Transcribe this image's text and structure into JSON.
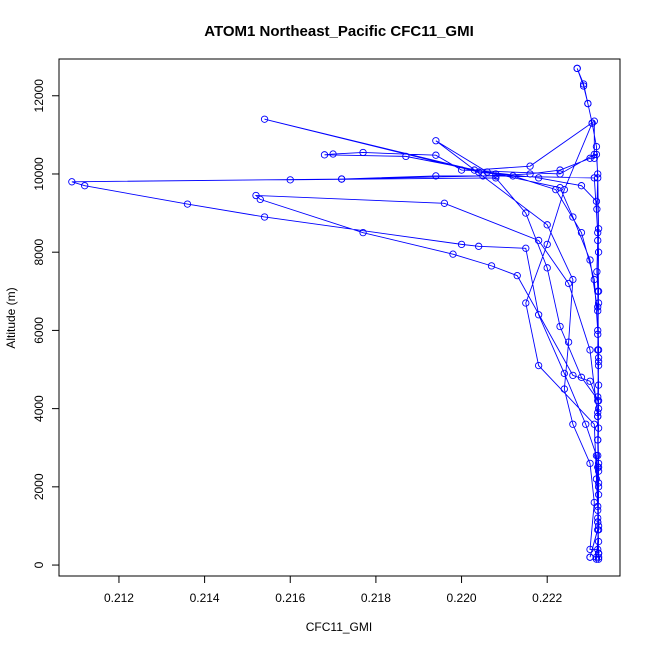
{
  "chart_data": {
    "type": "line",
    "title": "ATOM1 Northeast_Pacific CFC11_GMI",
    "xlabel": "CFC11_GMI",
    "ylabel": "Altitude (m)",
    "xlim": [
      0.2106,
      0.2237
    ],
    "ylim": [
      -280,
      12940
    ],
    "x_ticks": [
      0.212,
      0.214,
      0.216,
      0.218,
      0.22,
      0.222
    ],
    "x_tick_labels": [
      "0.212",
      "0.214",
      "0.216",
      "0.218",
      "0.220",
      "0.222"
    ],
    "y_ticks": [
      0,
      2000,
      4000,
      6000,
      8000,
      10000,
      12000
    ],
    "y_tick_labels": [
      "0",
      "2000",
      "4000",
      "6000",
      "8000",
      "10000",
      "12000"
    ],
    "grid": false,
    "series": [
      {
        "color": "#0000ff",
        "marker": "open-circle",
        "points": [
          [
            0.22315,
            150
          ],
          [
            0.2232,
            600
          ],
          [
            0.22318,
            1200
          ],
          [
            0.2232,
            2000
          ],
          [
            0.22318,
            2800
          ],
          [
            0.2232,
            3500
          ],
          [
            0.22318,
            4300
          ],
          [
            0.2232,
            5100
          ],
          [
            0.22318,
            5900
          ],
          [
            0.2232,
            6700
          ],
          [
            0.22316,
            7500
          ],
          [
            0.22318,
            8300
          ],
          [
            0.22316,
            9100
          ],
          [
            0.22318,
            9900
          ],
          [
            0.22315,
            10700
          ],
          [
            0.22305,
            11300
          ],
          [
            0.22295,
            11800
          ],
          [
            0.22285,
            12250
          ],
          [
            0.2227,
            12700
          ],
          [
            0.2227,
            12700
          ],
          [
            0.22285,
            12300
          ],
          [
            0.22295,
            11800
          ],
          [
            0.22305,
            11300
          ],
          [
            0.2224,
            9600
          ],
          [
            0.222,
            8200
          ],
          [
            0.2215,
            6700
          ],
          [
            0.2218,
            5100
          ],
          [
            0.2231,
            3600
          ],
          [
            0.22315,
            2200
          ],
          [
            0.2232,
            900
          ],
          [
            0.22315,
            200
          ],
          [
            0.2232,
            200
          ],
          [
            0.22318,
            1100
          ],
          [
            0.2232,
            2100
          ],
          [
            0.22318,
            3200
          ],
          [
            0.2232,
            4200
          ],
          [
            0.2228,
            4800
          ],
          [
            0.2223,
            6100
          ],
          [
            0.222,
            7600
          ],
          [
            0.2215,
            9000
          ],
          [
            0.2208,
            9900
          ],
          [
            0.216,
            9850
          ],
          [
            0.2172,
            9870
          ],
          [
            0.2194,
            9950
          ],
          [
            0.2208,
            9950
          ],
          [
            0.2231,
            9900
          ],
          [
            0.22318,
            8500
          ],
          [
            0.2232,
            7000
          ],
          [
            0.22318,
            5500
          ],
          [
            0.2232,
            4000
          ],
          [
            0.22318,
            2500
          ],
          [
            0.2232,
            1000
          ],
          [
            0.223,
            200
          ],
          [
            0.223,
            200
          ],
          [
            0.22318,
            900
          ],
          [
            0.2232,
            2400
          ],
          [
            0.22318,
            3800
          ],
          [
            0.223,
            5500
          ],
          [
            0.2225,
            7200
          ],
          [
            0.2218,
            8300
          ],
          [
            0.2196,
            9250
          ],
          [
            0.2152,
            9450
          ],
          [
            0.2153,
            9350
          ],
          [
            0.2177,
            8500
          ],
          [
            0.2198,
            7950
          ],
          [
            0.2207,
            7650
          ],
          [
            0.2213,
            7400
          ],
          [
            0.2226,
            4850
          ],
          [
            0.223,
            4700
          ],
          [
            0.22318,
            4200
          ],
          [
            0.2232,
            5500
          ],
          [
            0.22318,
            7000
          ],
          [
            0.2232,
            8600
          ],
          [
            0.22318,
            10000
          ],
          [
            0.22315,
            10500
          ],
          [
            0.2231,
            10500
          ],
          [
            0.2223,
            10000
          ],
          [
            0.22,
            10100
          ],
          [
            0.2194,
            10480
          ],
          [
            0.2177,
            10550
          ],
          [
            0.217,
            10510
          ],
          [
            0.2168,
            10490
          ],
          [
            0.2187,
            10450
          ],
          [
            0.2208,
            10000
          ],
          [
            0.2223,
            9650
          ],
          [
            0.2226,
            8900
          ],
          [
            0.223,
            7800
          ],
          [
            0.22318,
            6500
          ],
          [
            0.2232,
            5200
          ],
          [
            0.22318,
            3800
          ],
          [
            0.2232,
            2600
          ],
          [
            0.22318,
            1400
          ],
          [
            0.2232,
            300
          ],
          [
            0.2232,
            300
          ],
          [
            0.22318,
            1500
          ],
          [
            0.22315,
            2800
          ],
          [
            0.2229,
            3600
          ],
          [
            0.2224,
            4900
          ],
          [
            0.2218,
            6400
          ],
          [
            0.2215,
            8100
          ],
          [
            0.2204,
            8150
          ],
          [
            0.22,
            8200
          ],
          [
            0.2154,
            8900
          ],
          [
            0.2136,
            9230
          ],
          [
            0.2112,
            9700
          ],
          [
            0.2109,
            9800
          ],
          [
            0.2172,
            9870
          ],
          [
            0.2205,
            9950
          ],
          [
            0.2216,
            10000
          ],
          [
            0.2223,
            10100
          ],
          [
            0.223,
            10400
          ],
          [
            0.2231,
            10400
          ],
          [
            0.2231,
            11350
          ],
          [
            0.2216,
            10200
          ],
          [
            0.2203,
            10100
          ],
          [
            0.2154,
            11400
          ],
          [
            0.2204,
            10050
          ],
          [
            0.2212,
            9950
          ],
          [
            0.2222,
            9600
          ],
          [
            0.2228,
            8500
          ],
          [
            0.2231,
            7300
          ],
          [
            0.22318,
            6000
          ],
          [
            0.2232,
            4600
          ],
          [
            0.22318,
            3200
          ],
          [
            0.2232,
            1800
          ],
          [
            0.22318,
            400
          ],
          [
            0.223,
            400
          ],
          [
            0.2231,
            1600
          ],
          [
            0.223,
            2600
          ],
          [
            0.2226,
            3600
          ],
          [
            0.2224,
            4500
          ],
          [
            0.2225,
            5700
          ],
          [
            0.2226,
            7300
          ],
          [
            0.222,
            8700
          ],
          [
            0.2194,
            10850
          ],
          [
            0.2206,
            10050
          ],
          [
            0.2218,
            9900
          ],
          [
            0.2228,
            9700
          ],
          [
            0.22315,
            9300
          ],
          [
            0.2232,
            8000
          ],
          [
            0.22318,
            6600
          ],
          [
            0.2232,
            5300
          ],
          [
            0.22318,
            3900
          ],
          [
            0.2232,
            2500
          ],
          [
            0.22318,
            1100
          ],
          [
            0.2232,
            150
          ]
        ]
      }
    ]
  }
}
